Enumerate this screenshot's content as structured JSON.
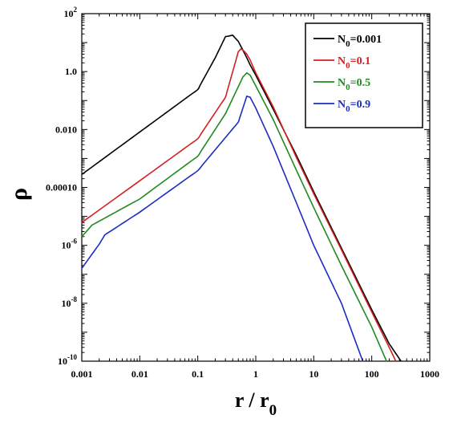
{
  "chart_data": {
    "type": "line",
    "xlabel": {
      "main": "r / r",
      "sub": "0"
    },
    "ylabel": "ρ",
    "x_scale": "log",
    "y_scale": "log",
    "xlim": [
      0.001,
      1000
    ],
    "ylim": [
      1e-10,
      100
    ],
    "grid": false,
    "legend_position": "top-right",
    "x_ticks": [
      {
        "value": 0.001,
        "label": "0.001"
      },
      {
        "value": 0.01,
        "label": "0.01"
      },
      {
        "value": 0.1,
        "label": "0.1"
      },
      {
        "value": 1,
        "label": "1"
      },
      {
        "value": 10,
        "label": "10"
      },
      {
        "value": 100,
        "label": "100"
      },
      {
        "value": 1000,
        "label": "1000"
      }
    ],
    "y_ticks": [
      {
        "value": 1e-10,
        "base": "10",
        "exp": "-10"
      },
      {
        "value": 1e-08,
        "base": "10",
        "exp": "-8"
      },
      {
        "value": 1e-06,
        "base": "10",
        "exp": "-6"
      },
      {
        "value": 0.0001,
        "text": "0.00010"
      },
      {
        "value": 0.01,
        "text": "0.010"
      },
      {
        "value": 1,
        "text": "1.0"
      },
      {
        "value": 100,
        "base": "10",
        "exp": "2"
      }
    ],
    "series": [
      {
        "name": {
          "base": "N",
          "sub": "0",
          "rest": "=0.001"
        },
        "color": "#000000",
        "x": [
          0.001,
          0.01,
          0.1,
          0.2,
          0.3,
          0.4,
          0.5,
          0.6,
          0.7,
          0.8,
          1,
          2,
          5,
          10,
          30,
          100,
          200,
          320
        ],
        "y": [
          0.00028,
          0.0082,
          0.24,
          3.0,
          16,
          18,
          11,
          5.5,
          3.0,
          1.7,
          0.75,
          0.05,
          0.0013,
          7e-05,
          8e-07,
          6e-09,
          4e-10,
          1e-10
        ]
      },
      {
        "name": {
          "base": "N",
          "sub": "0",
          "rest": "=0.1"
        },
        "color": "#d42020",
        "x": [
          0.001,
          0.0012,
          0.01,
          0.1,
          0.3,
          0.5,
          0.55,
          0.6,
          0.7,
          0.8,
          1,
          2,
          5,
          10,
          30,
          100,
          200,
          260
        ],
        "y": [
          6e-06,
          8e-06,
          0.00017,
          0.0048,
          0.13,
          4.8,
          6.0,
          5.6,
          4.0,
          2.5,
          0.9,
          0.06,
          0.0011,
          6e-05,
          7e-07,
          5e-09,
          3e-10,
          1e-10
        ]
      },
      {
        "name": {
          "base": "N",
          "sub": "0",
          "rest": "=0.5"
        },
        "color": "#208a20",
        "x": [
          0.001,
          0.0012,
          0.0015,
          0.01,
          0.1,
          0.3,
          0.6,
          0.7,
          0.8,
          1,
          2,
          5,
          10,
          30,
          100,
          180
        ],
        "y": [
          2e-06,
          3e-06,
          5e-06,
          4e-05,
          0.0012,
          0.035,
          0.65,
          0.9,
          0.75,
          0.32,
          0.022,
          0.0004,
          2e-05,
          2e-07,
          1.5e-09,
          1e-10
        ]
      },
      {
        "name": {
          "base": "N",
          "sub": "0",
          "rest": "=0.9"
        },
        "color": "#1c2cc2",
        "x": [
          0.001,
          0.002,
          0.0025,
          0.01,
          0.1,
          0.5,
          0.7,
          0.8,
          1,
          2,
          5,
          10,
          30,
          70
        ],
        "y": [
          1.6e-07,
          1.1e-06,
          2.3e-06,
          1.4e-05,
          0.00038,
          0.018,
          0.14,
          0.13,
          0.055,
          0.0026,
          3e-05,
          1e-06,
          1e-08,
          1e-10
        ]
      }
    ]
  }
}
